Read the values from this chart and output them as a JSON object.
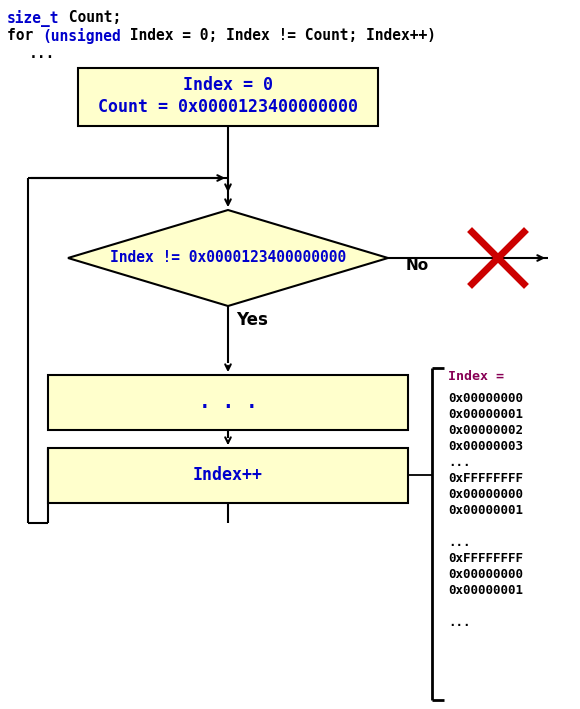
{
  "bg_color": "#ffffff",
  "box_fill": "#ffffcc",
  "box_edge": "#000000",
  "text_color_blue": "#0000cc",
  "text_color_black": "#000000",
  "text_color_magenta": "#880055",
  "arrow_color": "#000000",
  "cross_color": "#cc0000",
  "init_box_text": [
    "Index = 0",
    "Count = 0x0000123400000000"
  ],
  "diamond_text": "Index != 0x0000123400000000",
  "body_box_text": ". . .",
  "incr_box_text": "Index++",
  "no_label": "No",
  "yes_label": "Yes",
  "index_header": "Index =",
  "index_values": [
    "0x00000000",
    "0x00000001",
    "0x00000002",
    "0x00000003",
    "...",
    "0xFFFFFFFF",
    "0x00000000",
    "0x00000001",
    "",
    "...",
    "0xFFFFFFFF",
    "0x00000000",
    "0x00000001",
    "",
    "..."
  ]
}
